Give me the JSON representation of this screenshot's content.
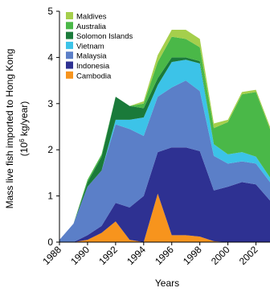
{
  "chart_data": {
    "type": "area",
    "stacked": true,
    "xlabel": "Years",
    "ylabel_line1": "Mass live fish imported to Hong Kong",
    "ylabel_line2_prefix": "(10",
    "ylabel_line2_exp": "6",
    "ylabel_line2_suffix": " kg/year)",
    "ylim": [
      0,
      5
    ],
    "xlim": [
      1988,
      2003
    ],
    "yticks": [
      "0",
      "1",
      "2",
      "3",
      "4",
      "5"
    ],
    "xticks": [
      "1988",
      "1990",
      "1992",
      "1994",
      "1996",
      "1998",
      "2000",
      "2002"
    ],
    "x": [
      1988,
      1989,
      1990,
      1991,
      1992,
      1993,
      1994,
      1995,
      1996,
      1997,
      1998,
      1999,
      2000,
      2001,
      2002,
      2003
    ],
    "legend_position": "top-left",
    "series": [
      {
        "name": "Cambodia",
        "color": "#f7941d",
        "values": [
          0,
          0,
          0.05,
          0.2,
          0.45,
          0.05,
          0,
          1.05,
          0.15,
          0.15,
          0.12,
          0.02,
          0,
          0,
          0,
          0
        ]
      },
      {
        "name": "Indonesia",
        "color": "#2e3192",
        "values": [
          0,
          0,
          0.1,
          0.15,
          0.4,
          0.7,
          1.0,
          0.9,
          1.9,
          1.9,
          1.85,
          1.1,
          1.2,
          1.3,
          1.25,
          0.9
        ]
      },
      {
        "name": "Malaysia",
        "color": "#5b7fc8",
        "values": [
          0.05,
          0.4,
          1.05,
          1.2,
          1.7,
          1.7,
          1.3,
          1.2,
          1.3,
          1.45,
          1.3,
          0.75,
          0.5,
          0.45,
          0.45,
          0.4
        ]
      },
      {
        "name": "Vietnam",
        "color": "#3cc3e8",
        "values": [
          0,
          0,
          0,
          0,
          0.1,
          0.2,
          0.4,
          0.25,
          0.55,
          0.45,
          0.6,
          0.25,
          0.2,
          0.2,
          0.15,
          0.1
        ]
      },
      {
        "name": "Solomon Islands",
        "color": "#1a7a3a",
        "values": [
          0,
          0,
          0.1,
          0.3,
          0.5,
          0.3,
          0.2,
          0.15,
          0.1,
          0.05,
          0.05,
          0,
          0,
          0,
          0,
          0
        ]
      },
      {
        "name": "Australia",
        "color": "#4ab848",
        "values": [
          0,
          0,
          0.05,
          0.05,
          0,
          0,
          0.1,
          0.35,
          0.45,
          0.4,
          0.3,
          0.35,
          0.7,
          1.25,
          1.4,
          1.05
        ]
      },
      {
        "name": "Maldives",
        "color": "#a5cf4c",
        "values": [
          0,
          0,
          0,
          0,
          0,
          0,
          0.05,
          0.15,
          0.15,
          0.2,
          0.18,
          0.1,
          0.05,
          0.05,
          0.05,
          0.05
        ]
      }
    ]
  }
}
